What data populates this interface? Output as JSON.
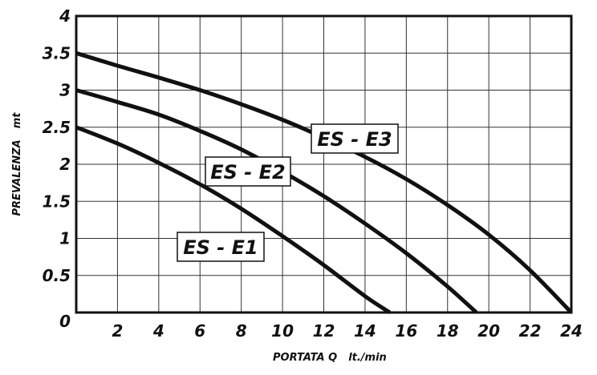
{
  "chart_data": {
    "type": "line",
    "xlabel": "PORTATA Q",
    "xunit": "lt./min",
    "ylabel": "PREVALENZA",
    "yunit": "mt",
    "xlim": [
      0,
      24
    ],
    "ylim": [
      0,
      4
    ],
    "x_ticks": [
      "2",
      "4",
      "6",
      "8",
      "10",
      "12",
      "14",
      "16",
      "18",
      "20",
      "22",
      "24"
    ],
    "y_ticks": [
      "0",
      "0.5",
      "1",
      "1.5",
      "2",
      "2.5",
      "3",
      "3.5",
      "4"
    ],
    "grid": true,
    "series": [
      {
        "name": "ES - E1",
        "x": [
          0,
          2,
          4,
          6,
          8,
          10,
          12,
          14,
          15.2
        ],
        "y": [
          2.5,
          2.28,
          2.02,
          1.73,
          1.4,
          1.03,
          0.64,
          0.22,
          0
        ]
      },
      {
        "name": "ES - E2",
        "x": [
          0,
          2,
          4,
          6,
          8,
          10,
          12,
          14,
          16,
          18,
          19.4
        ],
        "y": [
          3.0,
          2.84,
          2.67,
          2.45,
          2.2,
          1.9,
          1.57,
          1.2,
          0.8,
          0.35,
          0
        ]
      },
      {
        "name": "ES - E3",
        "x": [
          0,
          2,
          4,
          6,
          8,
          10,
          12,
          14,
          16,
          18,
          20,
          22,
          24
        ],
        "y": [
          3.5,
          3.33,
          3.17,
          3.0,
          2.81,
          2.6,
          2.36,
          2.1,
          1.8,
          1.45,
          1.05,
          0.57,
          0
        ]
      }
    ]
  }
}
